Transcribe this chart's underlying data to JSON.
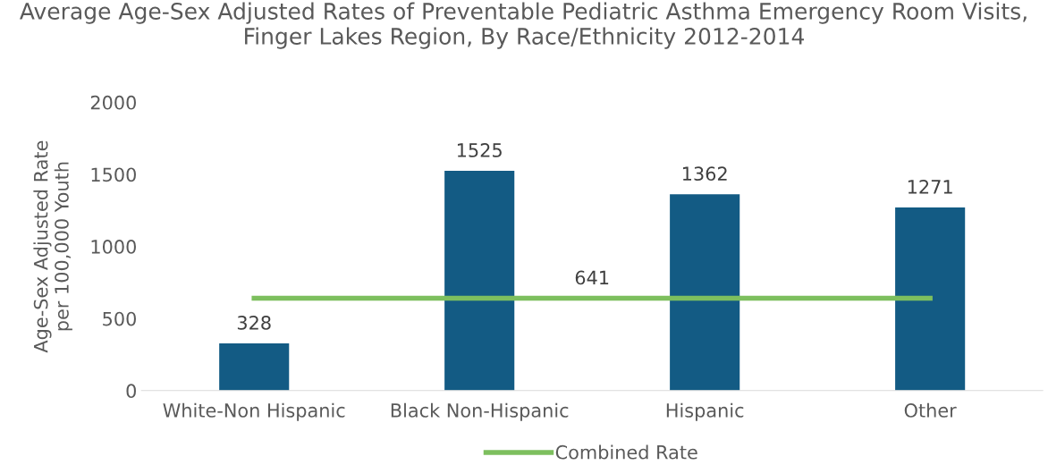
{
  "chart_data": {
    "type": "bar",
    "title": "Average Age-Sex Adjusted Rates of Preventable Pediatric Asthma Emergency Room Visits, Finger Lakes Region, By Race/Ethnicity 2012-2014",
    "ylabel": "Age-Sex Adjusted Rate\nper 100,000 Youth",
    "categories": [
      "White-Non Hispanic",
      "Black Non-Hispanic",
      "Hispanic",
      "Other"
    ],
    "series": [
      {
        "color": "#135b84",
        "values": [
          328,
          1525,
          1362,
          1271
        ],
        "value_labels": [
          "328",
          "1525",
          "1362",
          "1271"
        ]
      },
      {
        "type": "line",
        "name": "Combined Rate",
        "color": "#7dbf5e",
        "values": [
          641,
          641,
          641,
          641
        ]
      }
    ],
    "annotations": [
      {
        "text": "641",
        "y": 641
      }
    ],
    "ylim": [
      0,
      2000
    ],
    "yticks": [
      0,
      500,
      1000,
      1500,
      2000
    ],
    "grid": false,
    "legend": "bottom",
    "marker": "none",
    "line_style": "solid"
  }
}
